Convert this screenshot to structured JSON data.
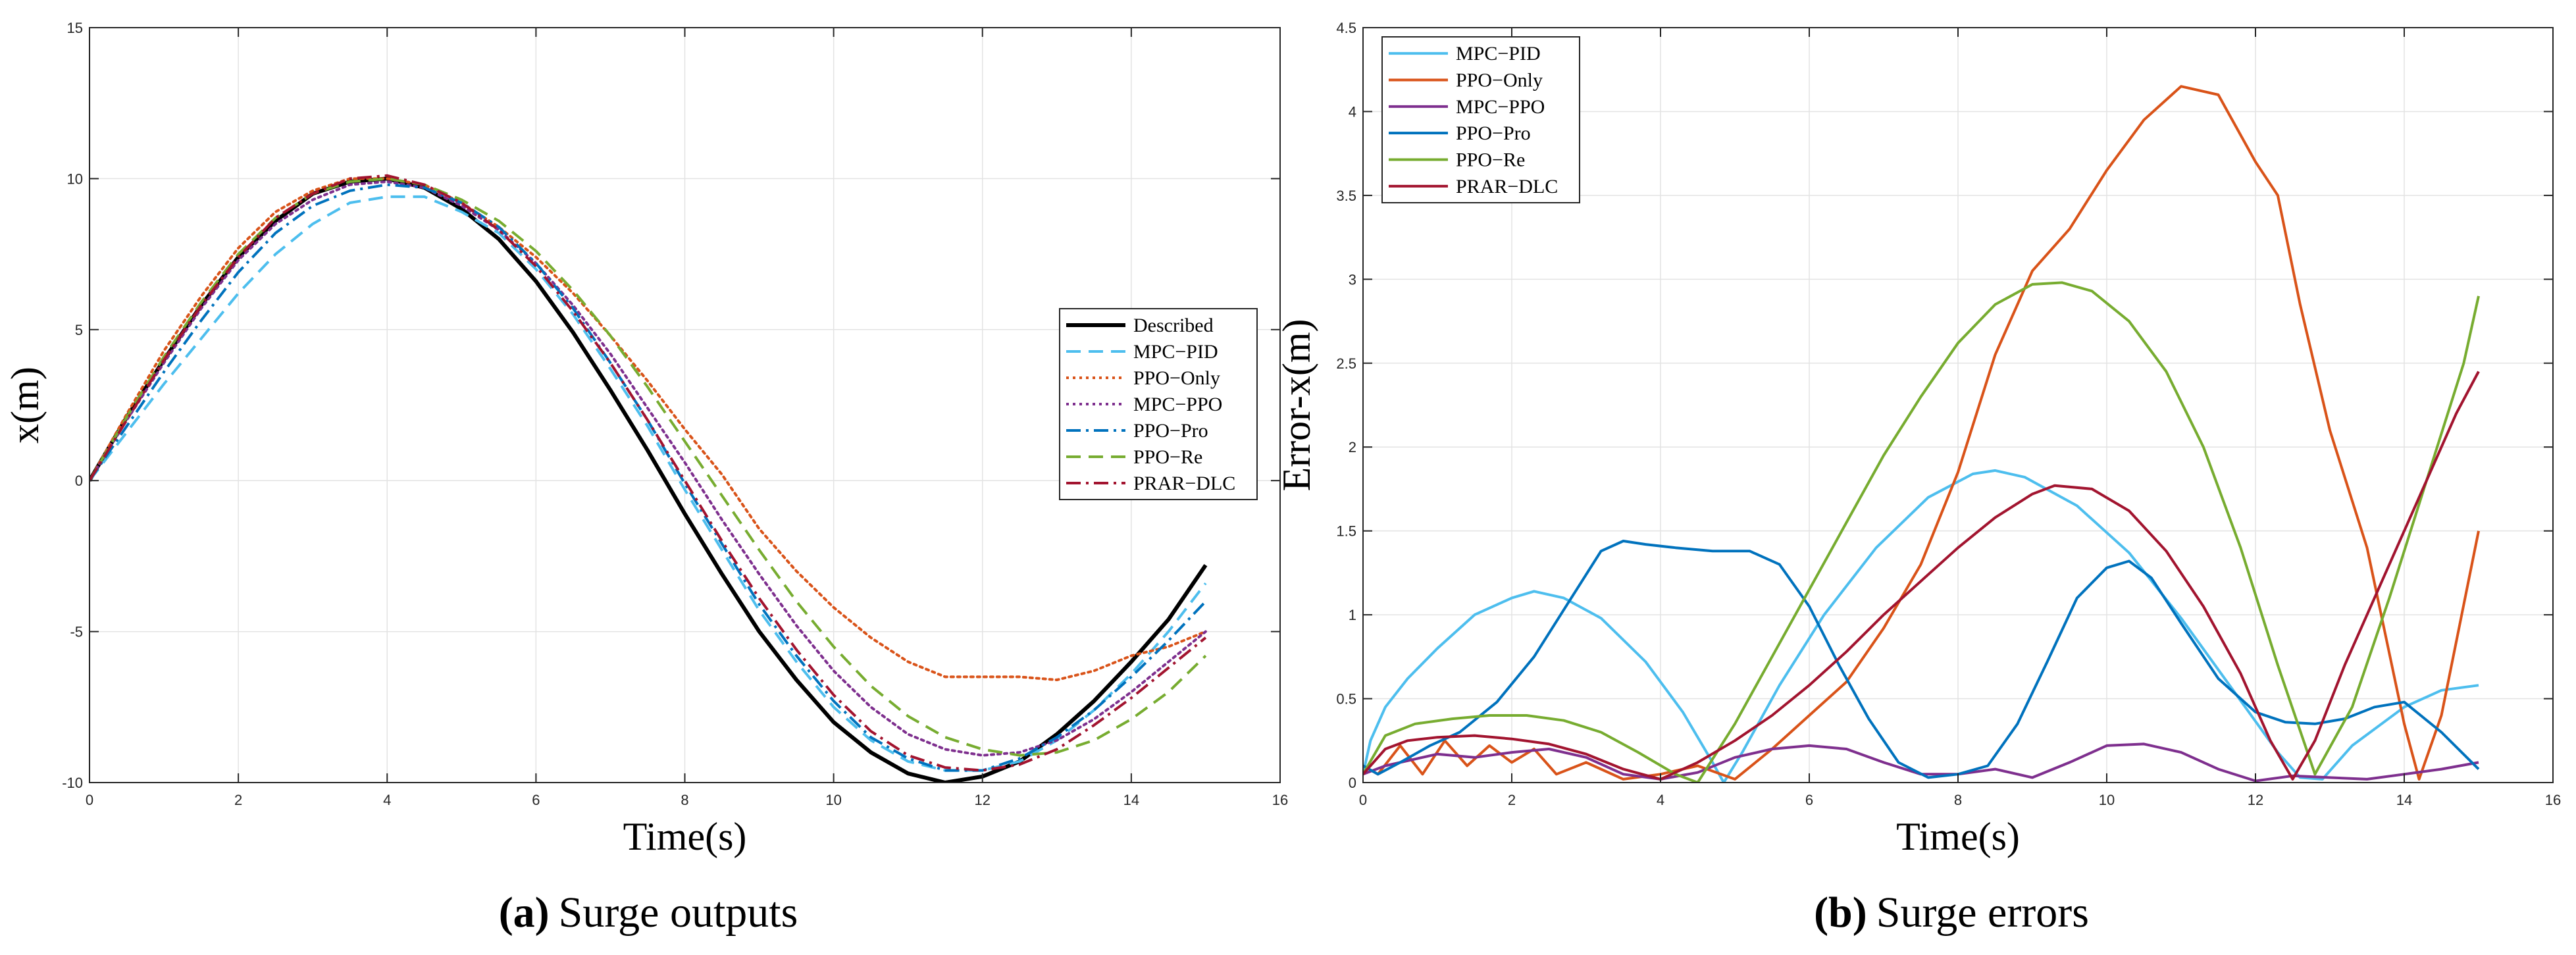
{
  "captions": [
    {
      "letter": "(a)",
      "text": "Surge outputs"
    },
    {
      "letter": "(b)",
      "text": "Surge errors"
    }
  ],
  "chart_data": [
    {
      "type": "line",
      "xlabel": "Time(s)",
      "ylabel": "x(m)",
      "xlim": [
        0,
        16
      ],
      "ylim": [
        -10,
        15
      ],
      "xticks": [
        0,
        2,
        4,
        6,
        8,
        10,
        12,
        14,
        16
      ],
      "yticks": [
        -10,
        -5,
        0,
        5,
        10,
        15
      ],
      "grid": true,
      "legend_position": "center-right",
      "series": [
        {
          "name": "Described",
          "color": "#000000",
          "dash": "solid",
          "width": 6,
          "x": [
            0,
            0.5,
            1,
            1.5,
            2,
            2.5,
            3,
            3.5,
            4,
            4.5,
            5,
            5.5,
            6,
            6.5,
            7,
            7.5,
            8,
            8.5,
            9,
            9.5,
            10,
            10.5,
            11,
            11.5,
            12,
            12.5,
            13,
            13.5,
            14,
            14.5,
            15
          ],
          "y": [
            0,
            2.1,
            4.0,
            5.8,
            7.4,
            8.6,
            9.5,
            9.9,
            10.0,
            9.7,
            9.0,
            8.0,
            6.6,
            4.9,
            3.0,
            1.0,
            -1.1,
            -3.1,
            -5.0,
            -6.6,
            -8.0,
            -9.0,
            -9.7,
            -10.0,
            -9.8,
            -9.3,
            -8.4,
            -7.3,
            -6.0,
            -4.6,
            -2.8
          ]
        },
        {
          "name": "MPC−PID",
          "color": "#4dbeee",
          "dash": "dashed",
          "width": 4,
          "x": [
            0,
            0.5,
            1,
            1.5,
            2,
            2.5,
            3,
            3.5,
            4,
            4.5,
            5,
            5.5,
            6,
            6.5,
            7,
            7.5,
            8,
            8.5,
            9,
            9.5,
            10,
            10.5,
            11,
            11.5,
            12,
            12.5,
            13,
            13.5,
            14,
            14.5,
            15
          ],
          "y": [
            0,
            1.6,
            3.2,
            4.7,
            6.2,
            7.5,
            8.5,
            9.2,
            9.4,
            9.4,
            8.9,
            8.2,
            7.0,
            5.5,
            3.7,
            1.8,
            -0.3,
            -2.3,
            -4.3,
            -6.0,
            -7.5,
            -8.6,
            -9.3,
            -9.6,
            -9.6,
            -9.3,
            -8.6,
            -7.6,
            -6.4,
            -5.0,
            -3.4
          ]
        },
        {
          "name": "PPO−Only",
          "color": "#d95319",
          "dash": "dotted",
          "width": 4,
          "x": [
            0,
            0.5,
            1,
            1.5,
            2,
            2.5,
            3,
            3.5,
            4,
            4.5,
            5,
            5.5,
            6,
            6.5,
            7,
            7.5,
            8,
            8.5,
            9,
            9.5,
            10,
            10.5,
            11,
            11.5,
            12,
            12.5,
            13,
            13.5,
            14,
            14.5,
            15
          ],
          "y": [
            0,
            2.2,
            4.3,
            6.1,
            7.7,
            8.9,
            9.6,
            10.0,
            10.0,
            9.8,
            9.2,
            8.4,
            7.4,
            6.2,
            4.8,
            3.3,
            1.7,
            0.2,
            -1.6,
            -3.0,
            -4.2,
            -5.2,
            -6.0,
            -6.5,
            -6.5,
            -6.5,
            -6.6,
            -6.3,
            -5.8,
            -5.5,
            -5.0
          ]
        },
        {
          "name": "MPC−PPO",
          "color": "#7e2f8e",
          "dash": "dotted",
          "width": 4,
          "x": [
            0,
            0.5,
            1,
            1.5,
            2,
            2.5,
            3,
            3.5,
            4,
            4.5,
            5,
            5.5,
            6,
            6.5,
            7,
            7.5,
            8,
            8.5,
            9,
            9.5,
            10,
            10.5,
            11,
            11.5,
            12,
            12.5,
            13,
            13.5,
            14,
            14.5,
            15
          ],
          "y": [
            0,
            2.0,
            3.9,
            5.7,
            7.3,
            8.5,
            9.3,
            9.8,
            9.9,
            9.7,
            9.1,
            8.3,
            7.2,
            5.8,
            4.2,
            2.4,
            0.6,
            -1.3,
            -3.1,
            -4.8,
            -6.3,
            -7.5,
            -8.4,
            -8.9,
            -9.1,
            -9.0,
            -8.6,
            -7.9,
            -7.0,
            -6.0,
            -5.0
          ]
        },
        {
          "name": "PPO−Pro",
          "color": "#0072bd",
          "dash": "dashdot",
          "width": 4,
          "x": [
            0,
            0.5,
            1,
            1.5,
            2,
            2.5,
            3,
            3.5,
            4,
            4.5,
            5,
            5.5,
            6,
            6.5,
            7,
            7.5,
            8,
            8.5,
            9,
            9.5,
            10,
            10.5,
            11,
            11.5,
            12,
            12.5,
            13,
            13.5,
            14,
            14.5,
            15
          ],
          "y": [
            0,
            1.8,
            3.6,
            5.3,
            6.9,
            8.2,
            9.1,
            9.6,
            9.8,
            9.7,
            9.2,
            8.4,
            7.2,
            5.7,
            3.9,
            2.0,
            -0.1,
            -2.1,
            -4.1,
            -5.8,
            -7.3,
            -8.5,
            -9.2,
            -9.6,
            -9.6,
            -9.2,
            -8.5,
            -7.6,
            -6.5,
            -5.3,
            -4.0
          ]
        },
        {
          "name": "PPO−Re",
          "color": "#77ac30",
          "dash": "dashed",
          "width": 4,
          "x": [
            0,
            0.5,
            1,
            1.5,
            2,
            2.5,
            3,
            3.5,
            4,
            4.5,
            5,
            5.5,
            6,
            6.5,
            7,
            7.5,
            8,
            8.5,
            9,
            9.5,
            10,
            10.5,
            11,
            11.5,
            12,
            12.5,
            13,
            13.5,
            14,
            14.5,
            15
          ],
          "y": [
            0,
            2.1,
            4.1,
            5.9,
            7.5,
            8.7,
            9.5,
            9.9,
            10.0,
            9.8,
            9.3,
            8.6,
            7.6,
            6.3,
            4.8,
            3.1,
            1.3,
            -0.5,
            -2.3,
            -4.0,
            -5.5,
            -6.8,
            -7.8,
            -8.5,
            -8.9,
            -9.1,
            -9.0,
            -8.6,
            -7.9,
            -7.0,
            -5.8
          ]
        },
        {
          "name": "PRAR−DLC",
          "color": "#a2142f",
          "dash": "dashdot",
          "width": 4,
          "x": [
            0,
            0.5,
            1,
            1.5,
            2,
            2.5,
            3,
            3.5,
            4,
            4.5,
            5,
            5.5,
            6,
            6.5,
            7,
            7.5,
            8,
            8.5,
            9,
            9.5,
            10,
            10.5,
            11,
            11.5,
            12,
            12.5,
            13,
            13.5,
            14,
            14.5,
            15
          ],
          "y": [
            0,
            2.0,
            4.0,
            5.8,
            7.4,
            8.7,
            9.5,
            10.0,
            10.1,
            9.8,
            9.2,
            8.3,
            7.1,
            5.6,
            3.9,
            2.0,
            0.0,
            -2.0,
            -3.9,
            -5.6,
            -7.1,
            -8.3,
            -9.1,
            -9.5,
            -9.6,
            -9.4,
            -8.9,
            -8.1,
            -7.2,
            -6.2,
            -5.2
          ]
        }
      ]
    },
    {
      "type": "line",
      "xlabel": "Time(s)",
      "ylabel": "Error-x(m)",
      "xlim": [
        0,
        16
      ],
      "ylim": [
        0,
        4.5
      ],
      "xticks": [
        0,
        2,
        4,
        6,
        8,
        10,
        12,
        14,
        16
      ],
      "yticks": [
        0,
        0.5,
        1,
        1.5,
        2,
        2.5,
        3,
        3.5,
        4,
        4.5
      ],
      "grid": true,
      "legend_position": "top-left",
      "series": [
        {
          "name": "MPC−PID",
          "color": "#4dbeee",
          "dash": "solid",
          "width": 4,
          "x": [
            0,
            0.1,
            0.3,
            0.6,
            1,
            1.5,
            2,
            2.3,
            2.7,
            3.2,
            3.8,
            4.3,
            4.7,
            4.85,
            5.1,
            5.6,
            6.2,
            6.9,
            7.6,
            8.2,
            8.5,
            8.9,
            9.6,
            10.3,
            11,
            11.7,
            12.3,
            12.6,
            12.9,
            13.3,
            14,
            14.5,
            15
          ],
          "y": [
            0.05,
            0.25,
            0.45,
            0.62,
            0.8,
            1.0,
            1.1,
            1.14,
            1.1,
            0.98,
            0.72,
            0.42,
            0.12,
            0.0,
            0.18,
            0.58,
            1.0,
            1.4,
            1.7,
            1.84,
            1.86,
            1.82,
            1.65,
            1.37,
            0.98,
            0.55,
            0.18,
            0.03,
            0.02,
            0.22,
            0.45,
            0.55,
            0.58
          ]
        },
        {
          "name": "PPO−Only",
          "color": "#d95319",
          "dash": "solid",
          "width": 4,
          "x": [
            0,
            0.2,
            0.5,
            0.8,
            1.1,
            1.4,
            1.7,
            2,
            2.3,
            2.6,
            3,
            3.5,
            4,
            4.5,
            5,
            5.5,
            6,
            6.5,
            7,
            7.5,
            8,
            8.5,
            9,
            9.5,
            10,
            10.5,
            11,
            11.5,
            12,
            12.3,
            12.6,
            13,
            13.5,
            14,
            14.2,
            14.5,
            15
          ],
          "y": [
            0.1,
            0.05,
            0.22,
            0.05,
            0.25,
            0.1,
            0.22,
            0.12,
            0.2,
            0.05,
            0.12,
            0.02,
            0.05,
            0.1,
            0.02,
            0.2,
            0.4,
            0.6,
            0.92,
            1.3,
            1.85,
            2.55,
            3.05,
            3.3,
            3.65,
            3.95,
            4.15,
            4.1,
            3.7,
            3.5,
            2.85,
            2.1,
            1.4,
            0.35,
            0.02,
            0.4,
            1.5
          ]
        },
        {
          "name": "MPC−PPO",
          "color": "#7e2f8e",
          "dash": "solid",
          "width": 4,
          "x": [
            0,
            0.3,
            0.7,
            1,
            1.5,
            2,
            2.5,
            3,
            3.5,
            4,
            4.5,
            5,
            5.5,
            6,
            6.5,
            7,
            7.5,
            8,
            8.5,
            9,
            9.5,
            10,
            10.5,
            11,
            11.5,
            12,
            12.5,
            13,
            13.5,
            14,
            14.5,
            15
          ],
          "y": [
            0.05,
            0.1,
            0.14,
            0.17,
            0.15,
            0.18,
            0.2,
            0.15,
            0.05,
            0.02,
            0.06,
            0.15,
            0.2,
            0.22,
            0.2,
            0.12,
            0.05,
            0.05,
            0.08,
            0.03,
            0.12,
            0.22,
            0.23,
            0.18,
            0.08,
            0.01,
            0.04,
            0.03,
            0.02,
            0.05,
            0.08,
            0.12
          ]
        },
        {
          "name": "PPO−Pro",
          "color": "#0072bd",
          "dash": "solid",
          "width": 4,
          "x": [
            0,
            0.2,
            0.5,
            0.9,
            1.3,
            1.8,
            2.3,
            2.8,
            3.2,
            3.5,
            3.8,
            4.2,
            4.7,
            5.2,
            5.6,
            6,
            6.4,
            6.8,
            7.2,
            7.6,
            8,
            8.4,
            8.8,
            9.2,
            9.6,
            10,
            10.3,
            10.6,
            11,
            11.5,
            12,
            12.4,
            12.8,
            13.2,
            13.6,
            14,
            14.5,
            15
          ],
          "y": [
            0.1,
            0.05,
            0.12,
            0.22,
            0.3,
            0.48,
            0.75,
            1.1,
            1.38,
            1.44,
            1.42,
            1.4,
            1.38,
            1.38,
            1.3,
            1.05,
            0.7,
            0.38,
            0.12,
            0.03,
            0.05,
            0.1,
            0.35,
            0.72,
            1.1,
            1.28,
            1.32,
            1.22,
            0.95,
            0.62,
            0.42,
            0.36,
            0.35,
            0.38,
            0.45,
            0.48,
            0.3,
            0.08
          ]
        },
        {
          "name": "PPO−Re",
          "color": "#77ac30",
          "dash": "solid",
          "width": 4,
          "x": [
            0,
            0.3,
            0.7,
            1.2,
            1.7,
            2.2,
            2.7,
            3.2,
            3.7,
            4.2,
            4.5,
            5,
            5.5,
            6,
            6.5,
            7,
            7.5,
            8,
            8.5,
            9,
            9.4,
            9.8,
            10.3,
            10.8,
            11.3,
            11.8,
            12.3,
            12.8,
            13.3,
            13.8,
            14.3,
            14.8,
            15
          ],
          "y": [
            0.05,
            0.28,
            0.35,
            0.38,
            0.4,
            0.4,
            0.37,
            0.3,
            0.18,
            0.05,
            0.0,
            0.35,
            0.75,
            1.15,
            1.55,
            1.95,
            2.3,
            2.62,
            2.85,
            2.97,
            2.98,
            2.93,
            2.75,
            2.45,
            2.0,
            1.4,
            0.7,
            0.05,
            0.45,
            1.1,
            1.8,
            2.5,
            2.9
          ]
        },
        {
          "name": "PRAR−DLC",
          "color": "#a2142f",
          "dash": "solid",
          "width": 4,
          "x": [
            0,
            0.3,
            0.6,
            1,
            1.5,
            2,
            2.5,
            3,
            3.5,
            4,
            4.5,
            5,
            5.5,
            6,
            6.5,
            7,
            7.5,
            8,
            8.5,
            9,
            9.3,
            9.8,
            10.3,
            10.8,
            11.3,
            11.8,
            12.2,
            12.5,
            12.8,
            13.2,
            13.7,
            14.2,
            14.7,
            15
          ],
          "y": [
            0.05,
            0.2,
            0.25,
            0.27,
            0.28,
            0.26,
            0.23,
            0.17,
            0.08,
            0.02,
            0.12,
            0.25,
            0.4,
            0.58,
            0.78,
            1.0,
            1.2,
            1.4,
            1.58,
            1.72,
            1.77,
            1.75,
            1.62,
            1.38,
            1.05,
            0.65,
            0.25,
            0.02,
            0.25,
            0.7,
            1.2,
            1.7,
            2.2,
            2.45
          ]
        }
      ]
    }
  ]
}
